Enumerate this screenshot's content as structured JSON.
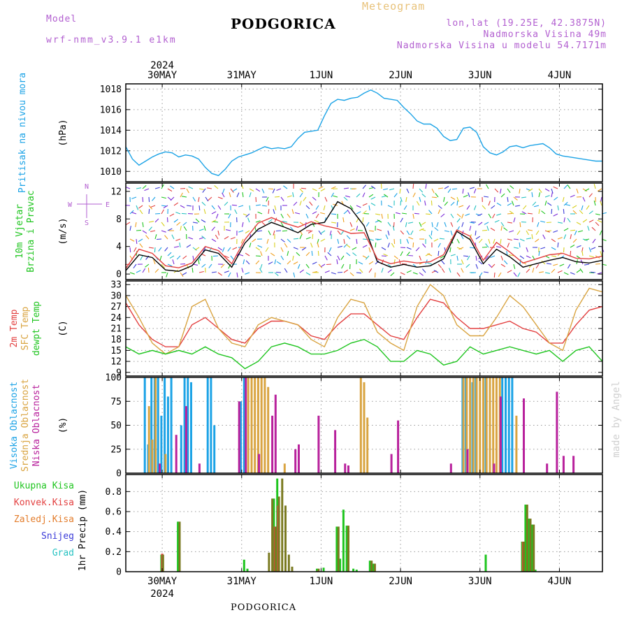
{
  "header": {
    "model_label": "Model",
    "model_name": "wrf-nmm_v3.9.1  e1km",
    "title": "PODGORICA",
    "meteogram_label": "Meteogram",
    "coords": "lon,lat (19.25E, 42.3875N)",
    "elevation": "Nadmorska Visina 49m",
    "model_elevation": "Nadmorska Visina u modelu 54.7171m"
  },
  "footer": {
    "station": "PODGORICA"
  },
  "watermark": "made by Angel",
  "time_axis": {
    "year": "2024",
    "days": [
      "30MAY",
      "31MAY",
      "1JUN",
      "2JUN",
      "3JUN",
      "4JUN"
    ],
    "range_hours": [
      0,
      144
    ],
    "day_hours": [
      11,
      35,
      59,
      83,
      107,
      131
    ]
  },
  "colors": {
    "pressure": "#1ca3e6",
    "t2m": "#e34040",
    "tsfc": "#d9a441",
    "dewpoint": "#1fc51f",
    "high_cloud": "#1ca3e6",
    "mid_cloud": "#d9a441",
    "low_cloud": "#b8219c",
    "total_precip": "#1fc51f",
    "conv_precip": "#e34040",
    "grid_precip": "#e37d2c",
    "snow": "#3b3bd8",
    "hail": "#26c2c2",
    "wind_speed": "#000000",
    "wind_gust": "#e34040"
  },
  "chart_data": [
    {
      "type": "line",
      "panel": "pressure",
      "label_lines": [
        "Pritisak na nivou mora"
      ],
      "unit": "(hPa)",
      "ylim": [
        1009,
        1018.5
      ],
      "yticks": [
        1010,
        1012,
        1014,
        1016,
        1018
      ],
      "grid": true,
      "series": [
        {
          "color": "#1ca3e6",
          "x": [
            0,
            2,
            4,
            6,
            8,
            10,
            12,
            14,
            16,
            18,
            20,
            22,
            24,
            26,
            28,
            30,
            32,
            34,
            36,
            38,
            40,
            42,
            44,
            46,
            48,
            50,
            52,
            54,
            56,
            58,
            60,
            62,
            64,
            66,
            68,
            70,
            72,
            74,
            76,
            78,
            80,
            82,
            84,
            86,
            88,
            90,
            92,
            94,
            96,
            98,
            100,
            102,
            104,
            106,
            108,
            110,
            112,
            114,
            116,
            118,
            120,
            122,
            124,
            126,
            128,
            130,
            132,
            134,
            136,
            138,
            140,
            142,
            144
          ],
          "y": [
            1012.4,
            1011.2,
            1010.6,
            1011.0,
            1011.4,
            1011.7,
            1011.9,
            1011.8,
            1011.4,
            1011.6,
            1011.5,
            1011.2,
            1010.4,
            1009.8,
            1009.6,
            1010.2,
            1011.0,
            1011.4,
            1011.6,
            1011.8,
            1012.1,
            1012.4,
            1012.2,
            1012.3,
            1012.2,
            1012.4,
            1013.2,
            1013.8,
            1013.9,
            1014.0,
            1015.4,
            1016.6,
            1017.0,
            1016.9,
            1017.1,
            1017.2,
            1017.6,
            1017.9,
            1017.6,
            1017.1,
            1017.0,
            1016.9,
            1016.2,
            1015.6,
            1014.9,
            1014.6,
            1014.6,
            1014.2,
            1013.4,
            1013.0,
            1013.1,
            1014.2,
            1014.3,
            1013.8,
            1012.4,
            1011.8,
            1011.6,
            1011.9,
            1012.4,
            1012.5,
            1012.3,
            1012.5,
            1012.6,
            1012.7,
            1012.3,
            1011.7,
            1011.5,
            1011.4,
            1011.3,
            1011.2,
            1011.1,
            1011.0,
            1011.0
          ]
        }
      ]
    },
    {
      "type": "line",
      "panel": "wind",
      "label_lines": [
        "10m Vjetar",
        "Brzina i Pravac"
      ],
      "unit": "(m/s)",
      "compass": {
        "n": "N",
        "e": "E",
        "w": "W",
        "s": "S"
      },
      "ylim": [
        -0.8,
        13.2
      ],
      "yticks": [
        0,
        4,
        8,
        12
      ],
      "grid": false,
      "series": [
        {
          "color": "#000000",
          "x": [
            0,
            4,
            8,
            12,
            16,
            20,
            24,
            28,
            32,
            36,
            40,
            44,
            48,
            52,
            56,
            60,
            64,
            68,
            72,
            76,
            80,
            84,
            88,
            92,
            96,
            100,
            104,
            108,
            112,
            116,
            120,
            124,
            128,
            132,
            136,
            140,
            144
          ],
          "y": [
            0.5,
            2.8,
            2.4,
            0.6,
            0.4,
            1.2,
            3.5,
            3.0,
            1.0,
            4.5,
            6.5,
            7.5,
            6.8,
            6.0,
            7.2,
            7.5,
            10.5,
            9.5,
            7.0,
            1.8,
            1.0,
            1.4,
            1.0,
            1.2,
            2.2,
            6.2,
            5.0,
            1.5,
            3.6,
            2.5,
            1.0,
            1.5,
            2.0,
            2.4,
            1.8,
            1.6,
            2.0
          ]
        },
        {
          "color": "#e34040",
          "x": [
            0,
            4,
            8,
            12,
            16,
            20,
            24,
            28,
            32,
            36,
            40,
            44,
            48,
            52,
            56,
            60,
            64,
            68,
            72,
            76,
            80,
            84,
            88,
            92,
            96,
            100,
            104,
            108,
            112,
            116,
            120,
            124,
            128,
            132,
            136,
            140,
            144
          ],
          "y": [
            0.8,
            3.6,
            3.0,
            1.2,
            0.9,
            1.6,
            4.0,
            3.4,
            1.5,
            5.0,
            7.4,
            8.2,
            7.4,
            6.8,
            7.6,
            7.0,
            6.6,
            5.9,
            6.0,
            2.2,
            1.5,
            1.9,
            1.6,
            1.8,
            2.8,
            6.4,
            5.5,
            2.0,
            4.6,
            3.2,
            1.6,
            2.2,
            2.8,
            3.0,
            2.3,
            2.2,
            2.6
          ]
        }
      ]
    },
    {
      "type": "line",
      "panel": "temperature",
      "label_lines": [
        "2m Temp",
        "SFC Temp",
        "dewpt Temp"
      ],
      "unit": "(C)",
      "ylim": [
        8,
        34
      ],
      "yticks": [
        9,
        12,
        15,
        18,
        21,
        24,
        27,
        30,
        33
      ],
      "grid": true,
      "series": [
        {
          "color": "#e34040",
          "x": [
            0,
            4,
            8,
            12,
            16,
            20,
            24,
            28,
            32,
            36,
            40,
            44,
            48,
            52,
            56,
            60,
            64,
            68,
            72,
            76,
            80,
            84,
            88,
            92,
            96,
            100,
            104,
            108,
            112,
            116,
            120,
            124,
            128,
            132,
            136,
            140,
            144
          ],
          "y": [
            28,
            22,
            18,
            16,
            16,
            22,
            24,
            21,
            18,
            17,
            21,
            23,
            23,
            22,
            19,
            18,
            22,
            25,
            25,
            22,
            19,
            18,
            24,
            29,
            28,
            24,
            21,
            21,
            22,
            23,
            21,
            20,
            17,
            17,
            22,
            26,
            27
          ]
        },
        {
          "color": "#d9a441",
          "x": [
            0,
            4,
            8,
            12,
            16,
            20,
            24,
            28,
            32,
            36,
            40,
            44,
            48,
            52,
            56,
            60,
            64,
            68,
            72,
            76,
            80,
            84,
            88,
            92,
            96,
            100,
            104,
            108,
            112,
            116,
            120,
            124,
            128,
            132,
            136,
            140,
            144
          ],
          "y": [
            30,
            24,
            17,
            14,
            16,
            27,
            29,
            21,
            17,
            16,
            22,
            24,
            23,
            22,
            18,
            16,
            24,
            29,
            28,
            20,
            17,
            15,
            27,
            33,
            30,
            22,
            19,
            19,
            24,
            30,
            27,
            22,
            17,
            15,
            26,
            32,
            31
          ]
        },
        {
          "color": "#1fc51f",
          "x": [
            0,
            4,
            8,
            12,
            16,
            20,
            24,
            28,
            32,
            36,
            40,
            44,
            48,
            52,
            56,
            60,
            64,
            68,
            72,
            76,
            80,
            84,
            88,
            92,
            96,
            100,
            104,
            108,
            112,
            116,
            120,
            124,
            128,
            132,
            136,
            140,
            144
          ],
          "y": [
            16,
            14,
            15,
            14,
            15,
            14,
            16,
            14,
            13,
            10,
            12,
            16,
            17,
            16,
            14,
            14,
            15,
            17,
            18,
            16,
            12,
            12,
            15,
            14,
            11,
            12,
            16,
            14,
            15,
            16,
            15,
            14,
            15,
            12,
            15,
            16,
            12
          ]
        }
      ]
    },
    {
      "type": "bar",
      "panel": "clouds",
      "label_lines": [
        "Visoka Oblacnost",
        "Srednja Oblacnost",
        "Niska Oblacnost"
      ],
      "unit": "(%)",
      "ylim": [
        0,
        100
      ],
      "yticks": [
        0,
        25,
        50,
        75,
        100
      ],
      "grid": true,
      "series": [
        {
          "color": "#1ca3e6",
          "x": [
            6,
            7,
            8,
            9,
            10,
            11,
            12,
            13,
            14,
            17,
            18,
            19,
            20,
            25,
            26,
            27,
            35,
            36,
            102,
            103,
            105,
            106,
            109,
            114,
            115,
            116,
            117
          ],
          "values": [
            100,
            30,
            100,
            100,
            100,
            60,
            100,
            80,
            100,
            50,
            100,
            100,
            95,
            100,
            100,
            50,
            75,
            100,
            100,
            100,
            95,
            100,
            100,
            100,
            100,
            100,
            100
          ]
        },
        {
          "color": "#d9a441",
          "x": [
            7,
            8,
            9,
            12,
            37,
            38,
            39,
            40,
            41,
            42,
            43,
            48,
            71,
            72,
            73,
            102,
            103,
            104,
            105,
            106,
            107,
            108,
            109,
            110,
            111,
            112,
            113,
            118
          ],
          "values": [
            70,
            35,
            100,
            20,
            100,
            100,
            100,
            100,
            100,
            100,
            90,
            10,
            100,
            95,
            58,
            100,
            100,
            100,
            100,
            100,
            100,
            100,
            100,
            100,
            100,
            100,
            100,
            60
          ]
        },
        {
          "color": "#b8219c",
          "x": [
            10,
            15,
            18,
            22,
            34,
            36,
            40,
            44,
            45,
            51,
            52,
            58,
            63,
            66,
            67,
            80,
            82,
            98,
            103,
            111,
            113,
            120,
            127,
            130,
            132,
            135
          ],
          "values": [
            10,
            40,
            70,
            10,
            75,
            100,
            20,
            60,
            82,
            25,
            30,
            60,
            45,
            10,
            8,
            20,
            55,
            10,
            25,
            10,
            80,
            78,
            10,
            85,
            18,
            18
          ]
        }
      ]
    },
    {
      "type": "bar",
      "panel": "precipitation",
      "label_lines": [
        "Ukupna Kisa",
        "Konvek.Kisa",
        "Zaledj.Kisa",
        "Snijeg",
        "Grad"
      ],
      "unit": "1hr Precip (mm)",
      "ylim": [
        0,
        0.97
      ],
      "yticks": [
        0,
        0.2,
        0.4,
        0.6,
        0.8
      ],
      "grid": true,
      "series": [
        {
          "color": "#1fc51f",
          "x": [
            11,
            16,
            36,
            37,
            45,
            46,
            58,
            60,
            64,
            65,
            66,
            67,
            69,
            70,
            74,
            75,
            109,
            120,
            121,
            122,
            123,
            124
          ],
          "values": [
            0.17,
            0.5,
            0.12,
            0.03,
            0.73,
            0.93,
            0.03,
            0.04,
            0.45,
            0.13,
            0.62,
            0.46,
            0.03,
            0.02,
            0.11,
            0.08,
            0.17,
            0.3,
            0.67,
            0.53,
            0.47,
            0.02
          ]
        },
        {
          "color": "#e34040",
          "x": [
            11,
            45,
            46,
            58,
            120
          ],
          "values": [
            0.18,
            0.45,
            0.66,
            0.01,
            0.3
          ]
        },
        {
          "color": "#7a7a20",
          "x": [
            11,
            16,
            43,
            44,
            45,
            46,
            47,
            48,
            49,
            50,
            58,
            64,
            67,
            74,
            75,
            120,
            121,
            122,
            123
          ],
          "values": [
            0.17,
            0.5,
            0.19,
            0.73,
            0.45,
            0.75,
            0.93,
            0.66,
            0.17,
            0.05,
            0.03,
            0.45,
            0.46,
            0.11,
            0.08,
            0.3,
            0.67,
            0.53,
            0.47
          ]
        }
      ]
    }
  ]
}
